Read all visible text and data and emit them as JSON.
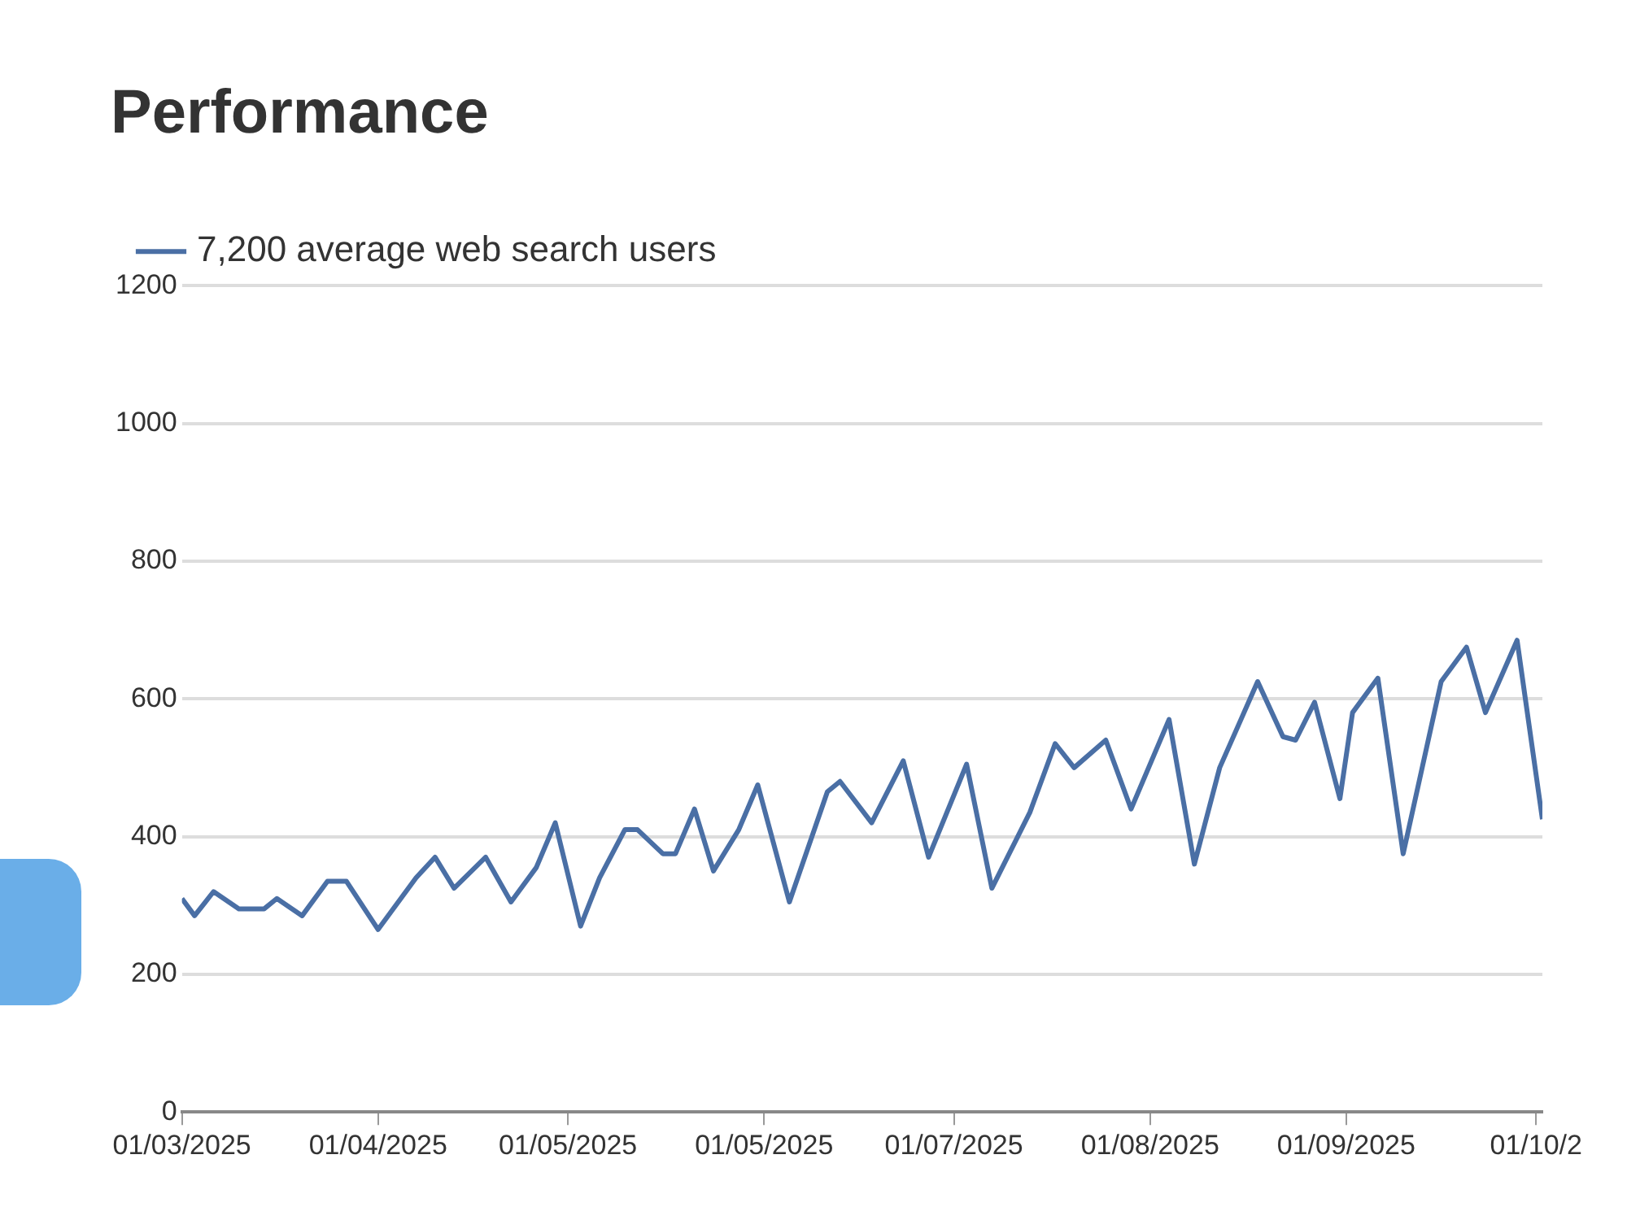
{
  "chart_data": {
    "type": "line",
    "title": "Performance",
    "legend": "top left",
    "grid": "y",
    "marker": "none",
    "line_style": "solid",
    "xlim": [
      "2025-03-01",
      "2025-10-02"
    ],
    "xticks": [
      {
        "value": "2025-03-01",
        "label": "01/03/2025"
      },
      {
        "value": "2025-04-01",
        "label": "01/04/2025"
      },
      {
        "value": "2025-05-01",
        "label": "01/05/2025"
      },
      {
        "value": "2025-06-01",
        "label": "01/05/2025"
      },
      {
        "value": "2025-07-01",
        "label": "01/07/2025"
      },
      {
        "value": "2025-08-01",
        "label": "01/08/2025"
      },
      {
        "value": "2025-09-01",
        "label": "01/09/2025"
      },
      {
        "value": "2025-10-01",
        "label": "01/10/2"
      }
    ],
    "ylim": [
      0,
      1200
    ],
    "yticks": [
      0,
      200,
      400,
      600,
      800,
      1000,
      1200
    ],
    "series": [
      {
        "name": "7,200 average web search users",
        "color": "#4a6fa5",
        "x": [
          "2025-03-01",
          "2025-03-03",
          "2025-03-06",
          "2025-03-10",
          "2025-03-14",
          "2025-03-16",
          "2025-03-20",
          "2025-03-24",
          "2025-03-27",
          "2025-04-01",
          "2025-04-07",
          "2025-04-10",
          "2025-04-13",
          "2025-04-18",
          "2025-04-22",
          "2025-04-26",
          "2025-04-29",
          "2025-05-03",
          "2025-05-06",
          "2025-05-10",
          "2025-05-12",
          "2025-05-16",
          "2025-05-18",
          "2025-05-21",
          "2025-05-24",
          "2025-05-28",
          "2025-05-31",
          "2025-06-05",
          "2025-06-11",
          "2025-06-13",
          "2025-06-18",
          "2025-06-23",
          "2025-06-27",
          "2025-07-03",
          "2025-07-07",
          "2025-07-13",
          "2025-07-17",
          "2025-07-20",
          "2025-07-25",
          "2025-07-29",
          "2025-08-04",
          "2025-08-08",
          "2025-08-12",
          "2025-08-18",
          "2025-08-22",
          "2025-08-24",
          "2025-08-27",
          "2025-08-31",
          "2025-09-02",
          "2025-09-06",
          "2025-09-10",
          "2025-09-16",
          "2025-09-20",
          "2025-09-23",
          "2025-09-28",
          "2025-10-02"
        ],
        "values": [
          310,
          285,
          320,
          295,
          295,
          310,
          285,
          335,
          335,
          265,
          340,
          370,
          325,
          370,
          305,
          355,
          420,
          270,
          340,
          410,
          410,
          375,
          375,
          440,
          350,
          410,
          475,
          305,
          465,
          480,
          420,
          510,
          370,
          505,
          325,
          435,
          535,
          500,
          540,
          440,
          570,
          360,
          500,
          625,
          545,
          540,
          595,
          455,
          580,
          630,
          375,
          625,
          675,
          580,
          685,
          425
        ]
      }
    ]
  }
}
